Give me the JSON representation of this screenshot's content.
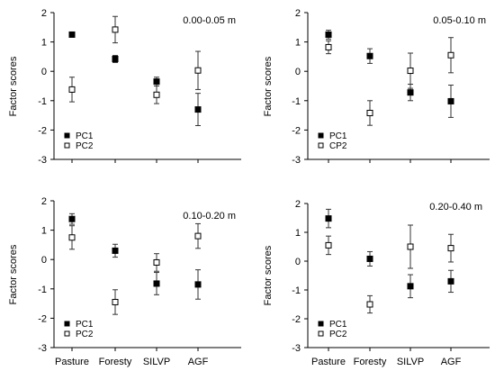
{
  "chart_data": [
    {
      "type": "scatter",
      "title": "0.00-0.05 m",
      "ylabel": "Factor scores",
      "xlabel": "",
      "ylim": [
        -3,
        2
      ],
      "yticks": [
        "2",
        "1",
        "0",
        "-1",
        "-2",
        "-3"
      ],
      "categories": [
        "Pasture",
        "Foresty",
        "SILVP",
        "AGF"
      ],
      "show_category_labels": false,
      "grid": false,
      "legend": "bottom-left",
      "series": [
        {
          "name": "PC1",
          "marker": "filled-square",
          "values": [
            1.25,
            0.42,
            -0.35,
            -1.3
          ],
          "errors": [
            0.05,
            0.12,
            0.15,
            0.55
          ]
        },
        {
          "name": "PC2",
          "marker": "open-square",
          "values": [
            -0.62,
            1.42,
            -0.8,
            0.03
          ],
          "errors": [
            0.42,
            0.45,
            0.3,
            0.65
          ]
        }
      ]
    },
    {
      "type": "scatter",
      "title": "0.05-0.10 m",
      "ylabel": "Factor scores",
      "xlabel": "",
      "ylim": [
        -3,
        2
      ],
      "yticks": [
        "2",
        "1",
        "0",
        "-1",
        "-2",
        "-3"
      ],
      "categories": [
        "Pasture",
        "Foresty",
        "SILVP",
        "AGF"
      ],
      "show_category_labels": false,
      "grid": false,
      "legend": "bottom-left",
      "series": [
        {
          "name": "PC1",
          "marker": "filled-square",
          "values": [
            1.25,
            0.52,
            -0.72,
            -1.02
          ],
          "errors": [
            0.15,
            0.25,
            0.28,
            0.55
          ]
        },
        {
          "name": "CP2",
          "marker": "open-square",
          "values": [
            0.82,
            -1.42,
            0.02,
            0.55
          ],
          "errors": [
            0.22,
            0.42,
            0.6,
            0.6
          ]
        }
      ]
    },
    {
      "type": "scatter",
      "title": "0.10-0.20 m",
      "ylabel": "Factor scores",
      "xlabel": "",
      "ylim": [
        -3,
        2
      ],
      "yticks": [
        "2",
        "1",
        "0",
        "-1",
        "-2",
        "-3"
      ],
      "categories": [
        "Pasture",
        "Foresty",
        "SILVP",
        "AGF"
      ],
      "show_category_labels": true,
      "grid": false,
      "legend": "bottom-left",
      "series": [
        {
          "name": "PC1",
          "marker": "filled-square",
          "values": [
            1.38,
            0.3,
            -0.82,
            -0.85
          ],
          "errors": [
            0.18,
            0.22,
            0.38,
            0.5
          ]
        },
        {
          "name": "PC2",
          "marker": "open-square",
          "values": [
            0.75,
            -1.45,
            -0.1,
            0.8
          ],
          "errors": [
            0.4,
            0.42,
            0.3,
            0.42
          ]
        }
      ]
    },
    {
      "type": "scatter",
      "title": "0.20-0.40 m",
      "ylabel": "Factor scores",
      "xlabel": "",
      "ylim": [
        -3,
        2
      ],
      "yticks": [
        "2",
        "1",
        "0",
        "-1",
        "-2",
        "-3"
      ],
      "categories": [
        "Pasture",
        "Foresty",
        "SILVP",
        "AGF"
      ],
      "show_category_labels": true,
      "grid": false,
      "legend": "bottom-left",
      "series": [
        {
          "name": "PC1",
          "marker": "filled-square",
          "values": [
            1.48,
            0.08,
            -0.87,
            -0.7
          ],
          "errors": [
            0.32,
            0.25,
            0.4,
            0.38
          ]
        },
        {
          "name": "PC2",
          "marker": "open-square",
          "values": [
            0.55,
            -1.5,
            0.5,
            0.45
          ],
          "errors": [
            0.32,
            0.3,
            0.75,
            0.48
          ]
        }
      ]
    }
  ]
}
